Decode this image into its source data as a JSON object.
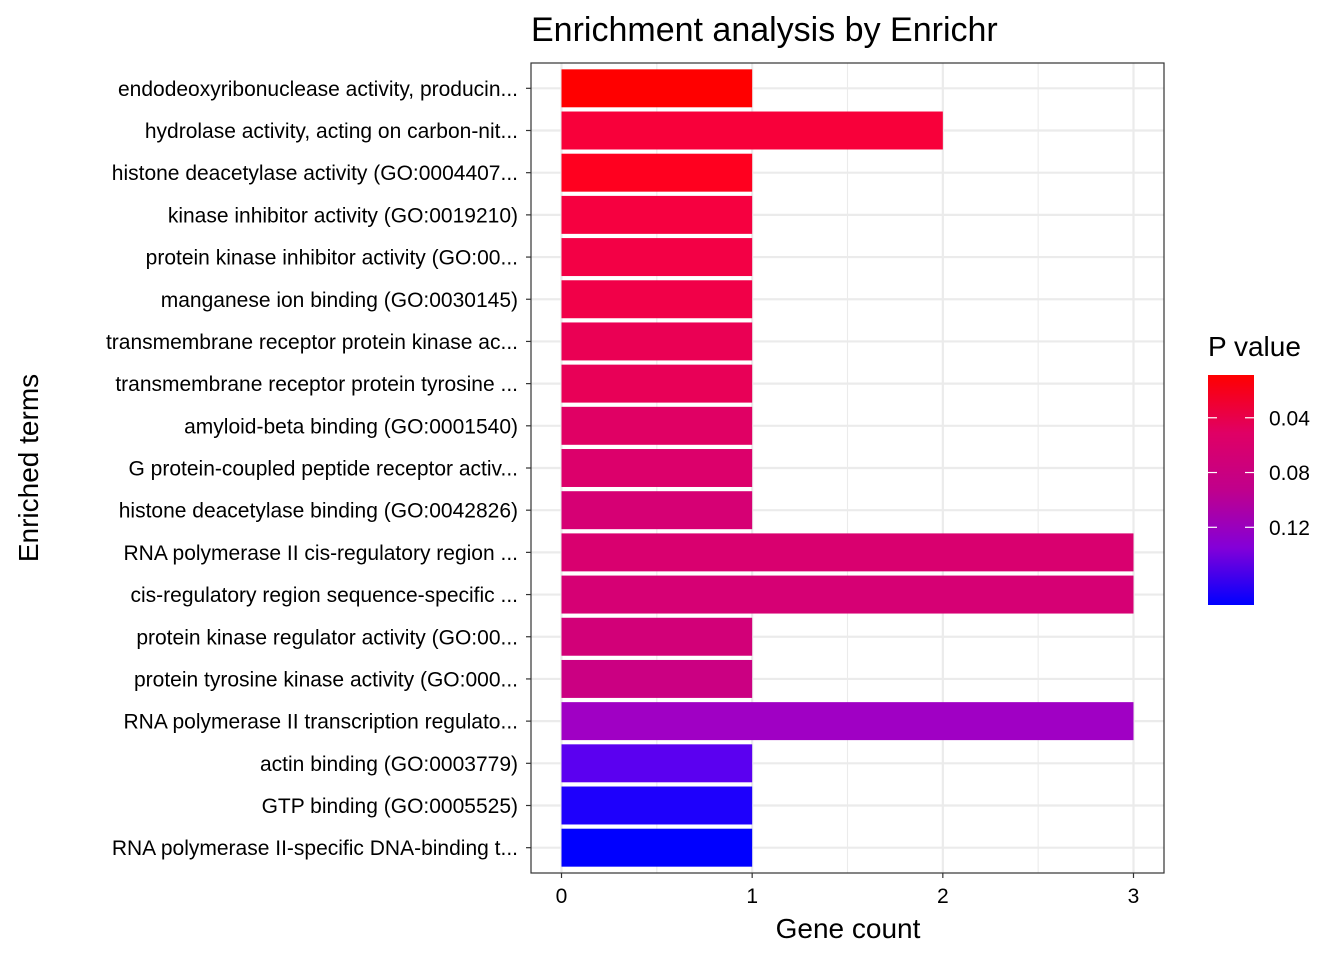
{
  "chart_data": {
    "type": "bar",
    "orientation": "horizontal",
    "title": "Enrichment analysis by Enrichr",
    "xlabel": "Gene count",
    "ylabel": "Enriched terms",
    "xlim": [
      -0.16,
      3.16
    ],
    "xticks": [
      "0",
      "1",
      "2",
      "3"
    ],
    "categories": [
      "endodeoxyribonuclease activity, producin...",
      "hydrolase activity, acting on carbon-nit...",
      "histone deacetylase activity (GO:0004407...",
      "kinase inhibitor activity (GO:0019210)",
      "protein kinase inhibitor activity (GO:00...",
      "manganese ion binding (GO:0030145)",
      "transmembrane receptor protein kinase ac...",
      "transmembrane receptor protein tyrosine ...",
      "amyloid-beta binding (GO:0001540)",
      "G protein-coupled peptide receptor activ...",
      "histone deacetylase binding (GO:0042826)",
      "RNA polymerase II cis-regulatory region ...",
      "cis-regulatory region sequence-specific ...",
      "protein kinase regulator activity (GO:00...",
      "protein tyrosine kinase activity (GO:000...",
      "RNA polymerase II transcription regulato...",
      "actin binding (GO:0003779)",
      "GTP binding (GO:0005525)",
      "RNA polymerase II-specific DNA-binding t..."
    ],
    "values": [
      1,
      2,
      1,
      1,
      1,
      1,
      1,
      1,
      1,
      1,
      1,
      3,
      3,
      1,
      1,
      3,
      1,
      1,
      1
    ],
    "p_values": [
      0.016,
      0.016,
      0.028,
      0.037,
      0.042,
      0.045,
      0.055,
      0.057,
      0.07,
      0.075,
      0.082,
      0.078,
      0.082,
      0.085,
      0.092,
      0.118,
      0.152,
      0.165,
      0.168
    ],
    "bar_colors": [
      "#ff0000",
      "#f8003a",
      "#ff001f",
      "#f60040",
      "#f30045",
      "#f10048",
      "#ea0054",
      "#e80057",
      "#e00064",
      "#dc006b",
      "#d60074",
      "#d9006f",
      "#d60074",
      "#d20078",
      "#cb0082",
      "#a000c4",
      "#5b00f0",
      "#1e00fc",
      "#0000ff"
    ],
    "legend": {
      "title": "P value",
      "position": "right",
      "ticks": [
        "0.04",
        "0.08",
        "0.12"
      ],
      "tick_values": [
        0.04,
        0.08,
        0.12
      ],
      "range": [
        0.168,
        0.0
      ],
      "colors": [
        "#ff0000",
        "#e00064",
        "#c0008c",
        "#8400d8",
        "#0000ff"
      ]
    },
    "grid": true
  }
}
